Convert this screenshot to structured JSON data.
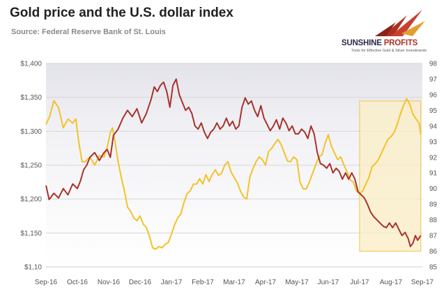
{
  "header": {
    "title": "Gold price and the U.S. dollar index",
    "subtitle": "Source: Federal Reserve Bank of St. Louis"
  },
  "logo": {
    "brand_main": "SUNSHINE",
    "brand_accent": " PROFITS",
    "tagline": "Tools for Effective Gold & Silver Investments"
  },
  "chart_data": {
    "type": "line",
    "title": "Gold price and the U.S. dollar index",
    "subtitle": "Source: Federal Reserve Bank of St. Louis",
    "x_tick_labels": [
      "Sep-16",
      "Oct-16",
      "Nov-16",
      "Dec-16",
      "Jan-17",
      "Feb-17",
      "Mar-17",
      "Apr-17",
      "May-17",
      "Jun-17",
      "Jul-17",
      "Aug-17",
      "Sep-17"
    ],
    "y_left": {
      "ylim": [
        1100,
        1400
      ],
      "ticks": [
        "$1,150",
        "$1,200",
        "$1,250",
        "$1,300",
        "$1,350",
        "$1,400"
      ],
      "tick_values": [
        1150,
        1200,
        1250,
        1300,
        1350,
        1400
      ],
      "bottom_label": "$1,10"
    },
    "y_right": {
      "ylim": [
        85,
        98
      ],
      "ticks": [
        "85",
        "86",
        "87",
        "88",
        "89",
        "90",
        "91",
        "92",
        "93",
        "94",
        "95",
        "96",
        "97",
        "98"
      ]
    },
    "grid": true,
    "colors": {
      "gold": "#f4c227",
      "dollar": "#a8322a",
      "highlight_fill": "#fbeec4",
      "highlight_stroke": "#f0c64e"
    },
    "highlight_region": {
      "x_start": 10.0,
      "x_end": 11.95,
      "y_top_right": 95.6,
      "y_bottom_right": 86.0
    },
    "series": [
      {
        "axis": "left",
        "values": [
          [
            0.0,
            1310
          ],
          [
            0.12,
            1322
          ],
          [
            0.25,
            1345
          ],
          [
            0.4,
            1335
          ],
          [
            0.55,
            1305
          ],
          [
            0.7,
            1318
          ],
          [
            0.85,
            1312
          ],
          [
            0.95,
            1318
          ],
          [
            1.05,
            1282
          ],
          [
            1.15,
            1255
          ],
          [
            1.25,
            1255
          ],
          [
            1.4,
            1262
          ],
          [
            1.55,
            1250
          ],
          [
            1.7,
            1264
          ],
          [
            1.85,
            1262
          ],
          [
            1.95,
            1276
          ],
          [
            2.05,
            1298
          ],
          [
            2.12,
            1305
          ],
          [
            2.2,
            1285
          ],
          [
            2.3,
            1255
          ],
          [
            2.4,
            1232
          ],
          [
            2.5,
            1212
          ],
          [
            2.6,
            1188
          ],
          [
            2.7,
            1182
          ],
          [
            2.8,
            1172
          ],
          [
            2.9,
            1168
          ],
          [
            3.0,
            1175
          ],
          [
            3.1,
            1163
          ],
          [
            3.2,
            1158
          ],
          [
            3.3,
            1145
          ],
          [
            3.4,
            1128
          ],
          [
            3.5,
            1126
          ],
          [
            3.6,
            1130
          ],
          [
            3.7,
            1128
          ],
          [
            3.8,
            1133
          ],
          [
            3.9,
            1136
          ],
          [
            4.0,
            1148
          ],
          [
            4.1,
            1162
          ],
          [
            4.2,
            1172
          ],
          [
            4.3,
            1178
          ],
          [
            4.4,
            1195
          ],
          [
            4.5,
            1208
          ],
          [
            4.6,
            1212
          ],
          [
            4.7,
            1222
          ],
          [
            4.8,
            1222
          ],
          [
            4.9,
            1230
          ],
          [
            5.0,
            1222
          ],
          [
            5.1,
            1236
          ],
          [
            5.2,
            1226
          ],
          [
            5.3,
            1236
          ],
          [
            5.4,
            1243
          ],
          [
            5.5,
            1235
          ],
          [
            5.6,
            1238
          ],
          [
            5.7,
            1250
          ],
          [
            5.8,
            1255
          ],
          [
            5.9,
            1240
          ],
          [
            6.0,
            1232
          ],
          [
            6.1,
            1224
          ],
          [
            6.2,
            1212
          ],
          [
            6.3,
            1203
          ],
          [
            6.4,
            1200
          ],
          [
            6.5,
            1232
          ],
          [
            6.6,
            1245
          ],
          [
            6.7,
            1255
          ],
          [
            6.8,
            1262
          ],
          [
            6.9,
            1258
          ],
          [
            7.0,
            1250
          ],
          [
            7.1,
            1270
          ],
          [
            7.2,
            1275
          ],
          [
            7.3,
            1282
          ],
          [
            7.4,
            1288
          ],
          [
            7.5,
            1280
          ],
          [
            7.6,
            1268
          ],
          [
            7.7,
            1256
          ],
          [
            7.8,
            1255
          ],
          [
            7.9,
            1262
          ],
          [
            8.0,
            1258
          ],
          [
            8.1,
            1225
          ],
          [
            8.2,
            1215
          ],
          [
            8.3,
            1215
          ],
          [
            8.4,
            1225
          ],
          [
            8.5,
            1238
          ],
          [
            8.6,
            1250
          ],
          [
            8.7,
            1262
          ],
          [
            8.8,
            1265
          ],
          [
            8.9,
            1282
          ],
          [
            9.0,
            1295
          ],
          [
            9.1,
            1278
          ],
          [
            9.2,
            1268
          ],
          [
            9.3,
            1258
          ],
          [
            9.4,
            1262
          ],
          [
            9.5,
            1250
          ],
          [
            9.6,
            1240
          ],
          [
            9.7,
            1228
          ],
          [
            9.8,
            1225
          ],
          [
            9.9,
            1212
          ],
          [
            10.0,
            1208
          ],
          [
            10.1,
            1212
          ],
          [
            10.2,
            1222
          ],
          [
            10.3,
            1232
          ],
          [
            10.4,
            1248
          ],
          [
            10.5,
            1252
          ],
          [
            10.6,
            1258
          ],
          [
            10.7,
            1268
          ],
          [
            10.8,
            1278
          ],
          [
            10.9,
            1288
          ],
          [
            11.0,
            1292
          ],
          [
            11.1,
            1298
          ],
          [
            11.2,
            1310
          ],
          [
            11.3,
            1325
          ],
          [
            11.4,
            1338
          ],
          [
            11.5,
            1348
          ],
          [
            11.6,
            1340
          ],
          [
            11.7,
            1325
          ],
          [
            11.8,
            1318
          ],
          [
            11.9,
            1312
          ],
          [
            11.95,
            1295
          ]
        ]
      },
      {
        "axis": "right",
        "values": [
          [
            0.0,
            90.2
          ],
          [
            0.1,
            89.3
          ],
          [
            0.25,
            89.7
          ],
          [
            0.4,
            89.4
          ],
          [
            0.55,
            90.0
          ],
          [
            0.7,
            89.6
          ],
          [
            0.85,
            90.3
          ],
          [
            1.0,
            90.0
          ],
          [
            1.1,
            90.5
          ],
          [
            1.2,
            91.2
          ],
          [
            1.3,
            91.5
          ],
          [
            1.4,
            92.0
          ],
          [
            1.55,
            92.3
          ],
          [
            1.7,
            91.8
          ],
          [
            1.85,
            92.3
          ],
          [
            1.95,
            92.5
          ],
          [
            2.05,
            92.0
          ],
          [
            2.15,
            93.4
          ],
          [
            2.3,
            93.8
          ],
          [
            2.45,
            94.5
          ],
          [
            2.6,
            95.0
          ],
          [
            2.75,
            94.6
          ],
          [
            2.9,
            95.1
          ],
          [
            3.05,
            94.2
          ],
          [
            3.2,
            94.8
          ],
          [
            3.35,
            95.7
          ],
          [
            3.45,
            96.5
          ],
          [
            3.55,
            96.2
          ],
          [
            3.65,
            96.6
          ],
          [
            3.75,
            96.8
          ],
          [
            3.85,
            96.2
          ],
          [
            3.95,
            95.2
          ],
          [
            4.05,
            96.6
          ],
          [
            4.15,
            97.0
          ],
          [
            4.25,
            96.0
          ],
          [
            4.35,
            95.5
          ],
          [
            4.45,
            95.0
          ],
          [
            4.55,
            95.2
          ],
          [
            4.65,
            94.8
          ],
          [
            4.75,
            94.0
          ],
          [
            4.85,
            93.8
          ],
          [
            4.95,
            94.2
          ],
          [
            5.05,
            93.6
          ],
          [
            5.15,
            93.2
          ],
          [
            5.25,
            93.6
          ],
          [
            5.35,
            93.8
          ],
          [
            5.45,
            94.2
          ],
          [
            5.55,
            93.8
          ],
          [
            5.65,
            94.0
          ],
          [
            5.75,
            94.5
          ],
          [
            5.85,
            94.0
          ],
          [
            5.95,
            94.3
          ],
          [
            6.05,
            93.8
          ],
          [
            6.15,
            94.0
          ],
          [
            6.25,
            95.2
          ],
          [
            6.35,
            95.8
          ],
          [
            6.45,
            95.4
          ],
          [
            6.55,
            95.6
          ],
          [
            6.65,
            95.0
          ],
          [
            6.75,
            94.6
          ],
          [
            6.85,
            95.3
          ],
          [
            6.95,
            94.5
          ],
          [
            7.05,
            94.1
          ],
          [
            7.15,
            93.7
          ],
          [
            7.25,
            94.0
          ],
          [
            7.35,
            94.4
          ],
          [
            7.45,
            93.8
          ],
          [
            7.55,
            94.5
          ],
          [
            7.65,
            94.2
          ],
          [
            7.75,
            93.7
          ],
          [
            7.85,
            94.0
          ],
          [
            7.95,
            93.5
          ],
          [
            8.05,
            93.5
          ],
          [
            8.15,
            93.8
          ],
          [
            8.25,
            93.6
          ],
          [
            8.35,
            93.2
          ],
          [
            8.45,
            94.0
          ],
          [
            8.55,
            93.5
          ],
          [
            8.65,
            92.3
          ],
          [
            8.75,
            91.6
          ],
          [
            8.85,
            91.5
          ],
          [
            8.95,
            91.3
          ],
          [
            9.05,
            91.6
          ],
          [
            9.15,
            91.0
          ],
          [
            9.25,
            91.3
          ],
          [
            9.35,
            91.1
          ],
          [
            9.45,
            90.6
          ],
          [
            9.55,
            91.0
          ],
          [
            9.65,
            90.6
          ],
          [
            9.75,
            91.0
          ],
          [
            9.85,
            90.6
          ],
          [
            9.95,
            89.8
          ],
          [
            10.05,
            89.6
          ],
          [
            10.15,
            89.4
          ],
          [
            10.25,
            89.0
          ],
          [
            10.35,
            88.5
          ],
          [
            10.45,
            88.2
          ],
          [
            10.55,
            88.0
          ],
          [
            10.65,
            87.8
          ],
          [
            10.75,
            87.6
          ],
          [
            10.85,
            87.5
          ],
          [
            10.95,
            87.8
          ],
          [
            11.05,
            87.5
          ],
          [
            11.15,
            87.8
          ],
          [
            11.25,
            87.4
          ],
          [
            11.35,
            87.0
          ],
          [
            11.45,
            87.2
          ],
          [
            11.55,
            86.8
          ],
          [
            11.62,
            86.3
          ],
          [
            11.7,
            86.5
          ],
          [
            11.78,
            87.0
          ],
          [
            11.85,
            86.7
          ],
          [
            11.95,
            87.0
          ]
        ]
      }
    ]
  }
}
